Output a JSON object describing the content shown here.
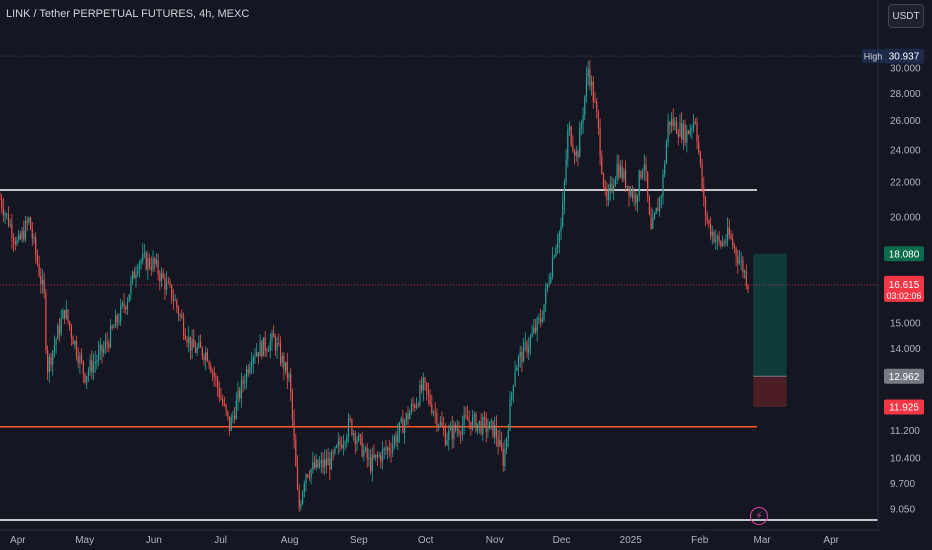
{
  "header": {
    "symbol": "LINK / Tether PERPETUAL FUTURES, 4h, MEXC",
    "currency_button": "USDT"
  },
  "colors": {
    "background": "#141722",
    "up": "#26a69a",
    "down": "#ef5350",
    "support_line": "#ff5722",
    "resistance_line": "#ffffff",
    "target_zone": "#0f3b3b",
    "stop_zone": "#4a1e24"
  },
  "chart_data": {
    "type": "candlestick",
    "title": "LINK / Tether PERPETUAL FUTURES, 4h, MEXC",
    "x_ticks": [
      "Apr",
      "May",
      "Jun",
      "Jul",
      "Aug",
      "Sep",
      "Oct",
      "Nov",
      "Dec",
      "2025",
      "Feb",
      "Mar",
      "Apr"
    ],
    "y_ticks": [
      "30.000",
      "28.000",
      "26.000",
      "24.000",
      "22.000",
      "20.000",
      "15.000",
      "14.000",
      "11.200",
      "10.400",
      "9.700",
      "9.050"
    ],
    "y_scale": "log",
    "ylim": [
      8.7,
      32.5
    ],
    "price_path": [
      [
        "2024-03-24",
        21.0
      ],
      [
        "2024-04-01",
        18.5
      ],
      [
        "2024-04-06",
        19.8
      ],
      [
        "2024-04-13",
        16.0
      ],
      [
        "2024-04-14",
        13.2
      ],
      [
        "2024-04-22",
        15.5
      ],
      [
        "2024-05-01",
        13.0
      ],
      [
        "2024-05-10",
        14.0
      ],
      [
        "2024-05-20",
        16.0
      ],
      [
        "2024-05-25",
        17.8
      ],
      [
        "2024-06-01",
        17.6
      ],
      [
        "2024-06-10",
        16.0
      ],
      [
        "2024-06-18",
        14.0
      ],
      [
        "2024-06-25",
        13.8
      ],
      [
        "2024-07-05",
        11.3
      ],
      [
        "2024-07-15",
        13.8
      ],
      [
        "2024-07-25",
        14.3
      ],
      [
        "2024-08-01",
        12.8
      ],
      [
        "2024-08-05",
        9.0
      ],
      [
        "2024-08-08",
        10.0
      ],
      [
        "2024-08-20",
        10.3
      ],
      [
        "2024-08-28",
        11.4
      ],
      [
        "2024-09-06",
        10.2
      ],
      [
        "2024-09-15",
        10.7
      ],
      [
        "2024-09-25",
        11.9
      ],
      [
        "2024-09-30",
        12.6
      ],
      [
        "2024-10-10",
        11.0
      ],
      [
        "2024-10-20",
        11.5
      ],
      [
        "2024-11-01",
        11.2
      ],
      [
        "2024-11-05",
        10.3
      ],
      [
        "2024-11-10",
        13.3
      ],
      [
        "2024-11-15",
        14.0
      ],
      [
        "2024-11-22",
        15.2
      ],
      [
        "2024-11-28",
        18.5
      ],
      [
        "2024-12-01",
        19.5
      ],
      [
        "2024-12-04",
        25.5
      ],
      [
        "2024-12-08",
        23.5
      ],
      [
        "2024-12-13",
        30.0
      ],
      [
        "2024-12-17",
        26.0
      ],
      [
        "2024-12-21",
        20.5
      ],
      [
        "2024-12-26",
        23.0
      ],
      [
        "2025-01-03",
        21.0
      ],
      [
        "2025-01-07",
        23.5
      ],
      [
        "2025-01-10",
        19.0
      ],
      [
        "2025-01-15",
        21.5
      ],
      [
        "2025-01-18",
        26.0
      ],
      [
        "2025-01-26",
        25.0
      ],
      [
        "2025-01-30",
        26.2
      ],
      [
        "2025-02-03",
        20.5
      ],
      [
        "2025-02-05",
        19.5
      ],
      [
        "2025-02-10",
        18.5
      ],
      [
        "2025-02-14",
        19.0
      ],
      [
        "2025-02-20",
        17.5
      ],
      [
        "2025-02-23",
        16.6
      ]
    ],
    "levels": [
      {
        "label": "High",
        "value": "30.937",
        "price": 30.937,
        "style": "dotted",
        "color": "#434651"
      },
      {
        "value": "",
        "price": 21.5,
        "style": "solid",
        "color": "#ffffff"
      },
      {
        "value": "",
        "price": 11.3,
        "style": "solid",
        "color": "#ff5722"
      },
      {
        "value": "",
        "price": 8.77,
        "style": "solid",
        "color": "#ffffff"
      }
    ],
    "last_price": {
      "value": "16.615",
      "countdown": "03:02:06",
      "price": 16.615,
      "color": "#f23645"
    },
    "position": {
      "type": "long",
      "target": {
        "value": "18.080",
        "price": 18.08
      },
      "entry": {
        "value": "12.962",
        "price": 12.962
      },
      "stop": {
        "value": "11.925",
        "price": 11.925
      },
      "start_date": "2025-02-25",
      "end_date": "2025-03-12"
    },
    "date_range": [
      "2024-03-24",
      "2025-04-22"
    ]
  }
}
